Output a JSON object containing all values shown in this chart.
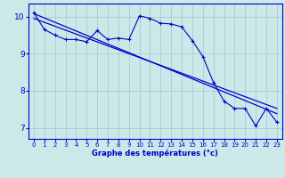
{
  "xlabel": "Graphe des températures (°c)",
  "background_color": "#cce8e8",
  "line_color": "#0000cc",
  "xlim": [
    -0.5,
    23.5
  ],
  "ylim": [
    6.7,
    10.35
  ],
  "xticks": [
    0,
    1,
    2,
    3,
    4,
    5,
    6,
    7,
    8,
    9,
    10,
    11,
    12,
    13,
    14,
    15,
    16,
    17,
    18,
    19,
    20,
    21,
    22,
    23
  ],
  "yticks": [
    7,
    8,
    9,
    10
  ],
  "grid_color": "#99cccc",
  "trend1_x": [
    0,
    23
  ],
  "trend1_y": [
    10.08,
    7.38
  ],
  "trend2_x": [
    0,
    23
  ],
  "trend2_y": [
    9.95,
    7.52
  ],
  "zigzag_x": [
    0,
    1,
    2,
    3,
    4,
    5,
    6,
    7,
    8,
    9,
    10,
    11,
    12,
    13,
    14,
    15,
    16,
    17,
    18,
    19,
    20,
    21,
    22,
    23
  ],
  "zigzag_y": [
    10.1,
    9.65,
    9.5,
    9.38,
    9.38,
    9.32,
    9.62,
    9.38,
    9.42,
    9.38,
    10.02,
    9.95,
    9.82,
    9.8,
    9.72,
    9.35,
    8.92,
    8.22,
    7.72,
    7.52,
    7.52,
    7.05,
    7.52,
    7.15
  ]
}
